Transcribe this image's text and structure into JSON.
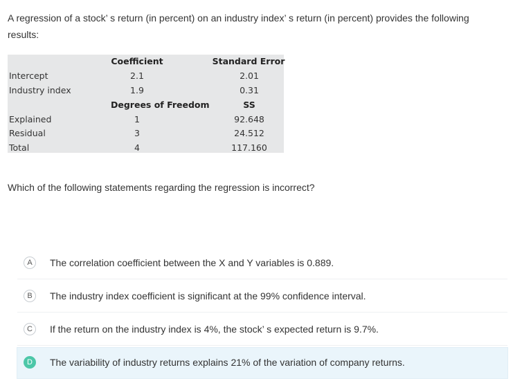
{
  "question": {
    "text": "A regression of a stock’ s return (in percent) on an industry index’ s return (in percent) provides the following results:"
  },
  "table": {
    "headers1": {
      "coef": "Coefficient",
      "se": "Standard Error"
    },
    "rows1": [
      {
        "label": "Intercept",
        "coef": "2.1",
        "se": "2.01"
      },
      {
        "label": "Industry index",
        "coef": "1.9",
        "se": "0.31"
      }
    ],
    "headers2": {
      "df": "Degrees of Freedom",
      "ss": "SS"
    },
    "rows2": [
      {
        "label": "Explained",
        "df": "1",
        "ss": "92.648"
      },
      {
        "label": "Residual",
        "df": "3",
        "ss": "24.512"
      },
      {
        "label": "Total",
        "df": "4",
        "ss": "117.160"
      }
    ]
  },
  "prompt": "Which of the following statements regarding the regression is incorrect?",
  "options": [
    {
      "letter": "A",
      "text": "The correlation coefficient between the X and Y variables is 0.889."
    },
    {
      "letter": "B",
      "text": "The industry index coefficient is significant at the 99% confidence interval."
    },
    {
      "letter": "C",
      "text": "If the return on the industry index is 4%, the stock’ s expected return is 9.7%."
    },
    {
      "letter": "D",
      "text": "The variability of industry returns explains 21% of the variation of company returns."
    }
  ],
  "selected_option": "D",
  "colors": {
    "selected_badge": "#4cc7a8",
    "selected_bg": "#eaf5fb",
    "table_bg": "#e6e7e8"
  }
}
